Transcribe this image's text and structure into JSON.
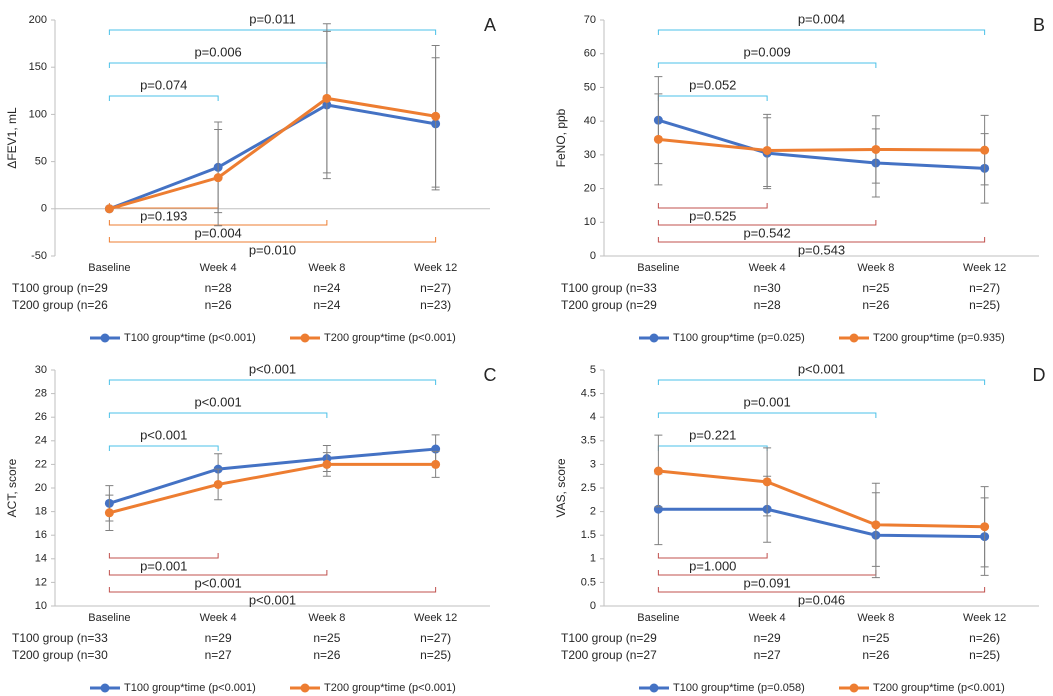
{
  "chart_data": [
    {
      "type": "line",
      "panel_label": "A",
      "y_label": "ΔFEV1, mL",
      "categories": [
        "Baseline",
        "Week 4",
        "Week 8",
        "Week 12"
      ],
      "ylim": [
        -50,
        200
      ],
      "yticks": [
        -50,
        0,
        50,
        100,
        150,
        200
      ],
      "grid": false,
      "series": [
        {
          "name": "T100 group*time (p<0.001)",
          "color": "#4472C4",
          "values": [
            0,
            44,
            110,
            90
          ],
          "errors": [
            0,
            48,
            78,
            70
          ]
        },
        {
          "name": "T200 group*time (p<0.001)",
          "color": "#ED7D31",
          "values": [
            0,
            33,
            117,
            98
          ],
          "errors": [
            0,
            51,
            79,
            75
          ]
        }
      ],
      "upper_brackets": [
        "p=0.074",
        "p=0.006",
        "p=0.011"
      ],
      "upper_bracket_color": "#4BC0E8",
      "lower_brackets": [
        "p=0.193",
        "p=0.004",
        "p=0.010"
      ],
      "lower_bracket_color": "#ED7D31",
      "n_rows": [
        [
          "T100 group (n=29",
          "n=28",
          "n=24",
          "n=27)"
        ],
        [
          "T200 group (n=26",
          "n=26",
          "n=24",
          "n=23)"
        ]
      ]
    },
    {
      "type": "line",
      "panel_label": "B",
      "y_label": "FeNO, ppb",
      "categories": [
        "Baseline",
        "Week 4",
        "Week 8",
        "Week 12"
      ],
      "ylim": [
        0,
        70
      ],
      "yticks": [
        0,
        10,
        20,
        30,
        40,
        50,
        60,
        70
      ],
      "grid": false,
      "series": [
        {
          "name": "T100 group*time (p=0.025)",
          "color": "#4472C4",
          "values": [
            40.3,
            30.5,
            27.6,
            26.0
          ],
          "errors": [
            12.9,
            10.5,
            10.1,
            10.3
          ]
        },
        {
          "name": "T200 group*time (p=0.935)",
          "color": "#ED7D31",
          "values": [
            34.6,
            31.3,
            31.6,
            31.4
          ],
          "errors": [
            13.5,
            10.7,
            10.0,
            10.3
          ]
        }
      ],
      "upper_brackets": [
        "p=0.052",
        "p=0.009",
        "p=0.004"
      ],
      "upper_bracket_color": "#4BC0E8",
      "lower_brackets": [
        "p=0.525",
        "p=0.542",
        "p=0.543"
      ],
      "lower_bracket_color": "#C0504D",
      "n_rows": [
        [
          "T100 group (n=33",
          "n=30",
          "n=25",
          "n=27)"
        ],
        [
          "T200 group (n=29",
          "n=28",
          "n=26",
          "n=25)"
        ]
      ]
    },
    {
      "type": "line",
      "panel_label": "C",
      "y_label": "ACT, score",
      "categories": [
        "Baseline",
        "Week 4",
        "Week 8",
        "Week 12"
      ],
      "ylim": [
        10,
        30
      ],
      "yticks": [
        10,
        12,
        14,
        16,
        18,
        20,
        22,
        24,
        26,
        28,
        30
      ],
      "grid": false,
      "series": [
        {
          "name": "T100 group*time (p<0.001)",
          "color": "#4472C4",
          "values": [
            18.7,
            21.6,
            22.5,
            23.3
          ],
          "errors": [
            1.5,
            1.3,
            1.1,
            1.2
          ]
        },
        {
          "name": "T200 group*time (p<0.001)",
          "color": "#ED7D31",
          "values": [
            17.9,
            20.3,
            22.0,
            22.0
          ],
          "errors": [
            1.5,
            1.3,
            1.0,
            1.1
          ]
        }
      ],
      "upper_brackets": [
        "p<0.001",
        "p<0.001",
        "p<0.001"
      ],
      "upper_bracket_color": "#4BC0E8",
      "lower_brackets": [
        "p=0.001",
        "p<0.001",
        "p<0.001"
      ],
      "lower_bracket_color": "#C0504D",
      "n_rows": [
        [
          "T100 group (n=33",
          "n=29",
          "n=25",
          "n=27)"
        ],
        [
          "T200 group (n=30",
          "n=27",
          "n=26",
          "n=25)"
        ]
      ]
    },
    {
      "type": "line",
      "panel_label": "D",
      "y_label": "VAS, score",
      "categories": [
        "Baseline",
        "Week 4",
        "Week 8",
        "Week 12"
      ],
      "ylim": [
        0,
        5
      ],
      "yticks": [
        0,
        0.5,
        1,
        1.5,
        2,
        2.5,
        3,
        3.5,
        4,
        4.5,
        5
      ],
      "grid": false,
      "series": [
        {
          "name": "T100 group*time (p=0.058)",
          "color": "#4472C4",
          "values": [
            2.05,
            2.05,
            1.5,
            1.47
          ],
          "errors": [
            0.75,
            0.7,
            0.9,
            0.82
          ]
        },
        {
          "name": "T200 group*time (p<0.001)",
          "color": "#ED7D31",
          "values": [
            2.86,
            2.63,
            1.72,
            1.68
          ],
          "errors": [
            0.76,
            0.72,
            0.88,
            0.85
          ]
        }
      ],
      "upper_brackets": [
        "p=0.221",
        "p=0.001",
        "p<0.001"
      ],
      "upper_bracket_color": "#4BC0E8",
      "lower_brackets": [
        "p=1.000",
        "p=0.091",
        "p=0.046"
      ],
      "lower_bracket_color": "#C0504D",
      "n_rows": [
        [
          "T100 group (n=29",
          "n=29",
          "n=25",
          "n=26)"
        ],
        [
          "T200 group (n=27",
          "n=27",
          "n=26",
          "n=25)"
        ]
      ]
    }
  ]
}
